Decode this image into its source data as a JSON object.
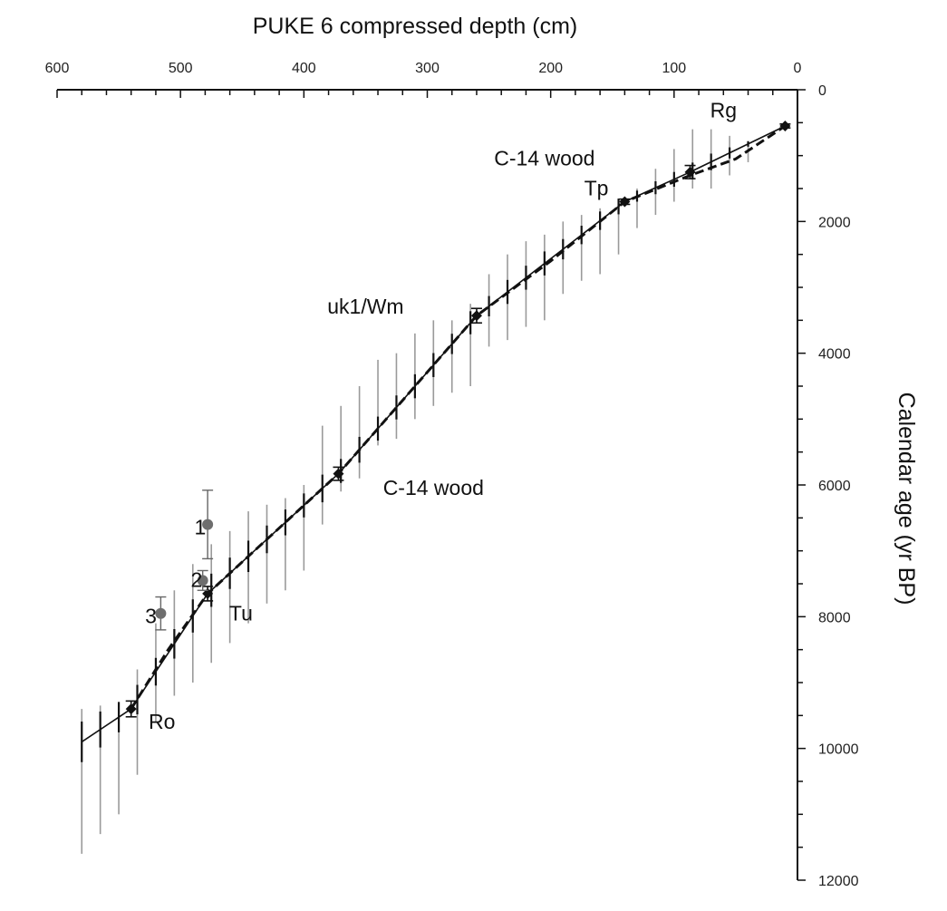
{
  "chart_data": {
    "type": "scatter",
    "title": "",
    "xlabel": "PUKE 6 compressed depth (cm)",
    "ylabel": "Calendar age (yr BP)",
    "xlim": [
      600,
      0
    ],
    "ylim": [
      0,
      12000
    ],
    "x_ticks": [
      600,
      500,
      400,
      300,
      200,
      100,
      0
    ],
    "y_ticks": [
      0,
      2000,
      4000,
      6000,
      8000,
      10000,
      12000
    ],
    "x_axis_position": "top",
    "y_axis_position": "right",
    "grid": false,
    "legend": "none",
    "series": [
      {
        "name": "",
        "style": "solid-line",
        "x": [
          580,
          540,
          478,
          372,
          260,
          140,
          87,
          10
        ],
        "y": [
          9900,
          9400,
          7650,
          5830,
          3430,
          1700,
          1250,
          550
        ]
      },
      {
        "name": "",
        "style": "dashed-line",
        "x": [
          540,
          510,
          478,
          372,
          260,
          200,
          140,
          87,
          50,
          10
        ],
        "y": [
          9400,
          8500,
          7650,
          5830,
          3430,
          2600,
          1700,
          1300,
          1050,
          550
        ]
      },
      {
        "name": "",
        "style": "tephra-and-c14-markers",
        "x": [
          540,
          478,
          372,
          260,
          140,
          87,
          10
        ],
        "y": [
          9400,
          7650,
          5830,
          3430,
          1700,
          1250,
          550
        ],
        "err": [
          120,
          110,
          100,
          110,
          40,
          100,
          30
        ]
      },
      {
        "name": "",
        "style": "grey-points",
        "x": [
          478,
          482,
          516
        ],
        "y": [
          6600,
          7450,
          7950
        ],
        "err": [
          520,
          150,
          250
        ]
      }
    ],
    "uncertainty_bars": {
      "x": [
        580,
        565,
        550,
        535,
        520,
        505,
        490,
        475,
        460,
        445,
        430,
        415,
        400,
        385,
        370,
        355,
        340,
        325,
        310,
        295,
        280,
        265,
        250,
        235,
        220,
        205,
        190,
        175,
        160,
        145,
        130,
        115,
        100,
        85,
        70,
        55,
        40
      ],
      "low": [
        9400,
        9350,
        9350,
        8800,
        8100,
        7600,
        7200,
        6900,
        6700,
        6400,
        6300,
        6200,
        6000,
        5100,
        4800,
        4500,
        4100,
        4000,
        3700,
        3500,
        3500,
        3250,
        2800,
        2500,
        2300,
        2200,
        2000,
        1900,
        1800,
        1650,
        1500,
        1200,
        900,
        600,
        600,
        700,
        800
      ],
      "high": [
        11600,
        11300,
        11000,
        10400,
        9600,
        9200,
        9000,
        8700,
        8400,
        8100,
        7800,
        7600,
        7300,
        6600,
        6100,
        5900,
        5400,
        5300,
        5000,
        4800,
        4600,
        4500,
        3900,
        3800,
        3600,
        3500,
        3100,
        2900,
        2800,
        2500,
        2100,
        1900,
        1700,
        1500,
        1500,
        1300,
        1100
      ]
    },
    "annotations": [
      {
        "text": "Rg",
        "x": 60,
        "y": 420
      },
      {
        "text": "C-14 wood",
        "x": 205,
        "y": 1150
      },
      {
        "text": "Tp",
        "x": 163,
        "y": 1600
      },
      {
        "text": "uk1/Wm",
        "x": 350,
        "y": 3400
      },
      {
        "text": "C-14 wood",
        "x": 295,
        "y": 6150
      },
      {
        "text": "1",
        "x": 484,
        "y": 6750
      },
      {
        "text": "2",
        "x": 487,
        "y": 7550
      },
      {
        "text": "Tu",
        "x": 451,
        "y": 8060
      },
      {
        "text": "3",
        "x": 524,
        "y": 8100
      },
      {
        "text": "Ro",
        "x": 515,
        "y": 9700
      }
    ]
  }
}
